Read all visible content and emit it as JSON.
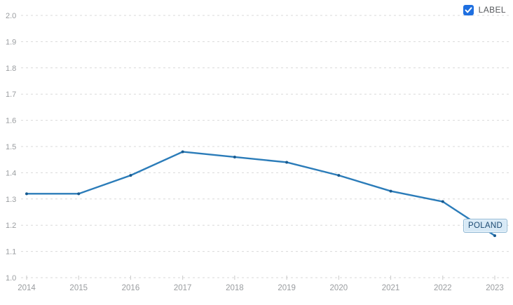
{
  "legend": {
    "label": "LABEL",
    "checked": true
  },
  "colors": {
    "line": "#2b7cb9",
    "marker": "#175a90",
    "grid": "#d9d9d9",
    "axis_text": "#9a9da0",
    "tick": "#c9c9c9",
    "checkbox_fill": "#1e6fe0",
    "checkbox_check": "#ffffff",
    "label_box_bg": "#d7e9f6",
    "label_box_border": "#8fb8d4",
    "label_box_text": "#1c4a72"
  },
  "chart_data": {
    "type": "line",
    "title": "",
    "xlabel": "",
    "ylabel": "",
    "categories": [
      2014,
      2015,
      2016,
      2017,
      2018,
      2019,
      2020,
      2021,
      2022,
      2023
    ],
    "xticks": [
      "2014",
      "2015",
      "2016",
      "2017",
      "2018",
      "2019",
      "2020",
      "2021",
      "2022",
      "2023"
    ],
    "yticks": [
      "1.0",
      "1.1",
      "1.2",
      "1.3",
      "1.4",
      "1.5",
      "1.6",
      "1.7",
      "1.8",
      "1.9",
      "2.0"
    ],
    "ylim": [
      1.0,
      2.0
    ],
    "grid": true,
    "grid_style": "dashed",
    "legend_position": "top-right",
    "series_label": "POLAND",
    "series": [
      {
        "name": "Poland",
        "values": [
          1.32,
          1.32,
          1.39,
          1.48,
          1.46,
          1.44,
          1.39,
          1.33,
          1.29,
          1.16
        ]
      }
    ]
  }
}
